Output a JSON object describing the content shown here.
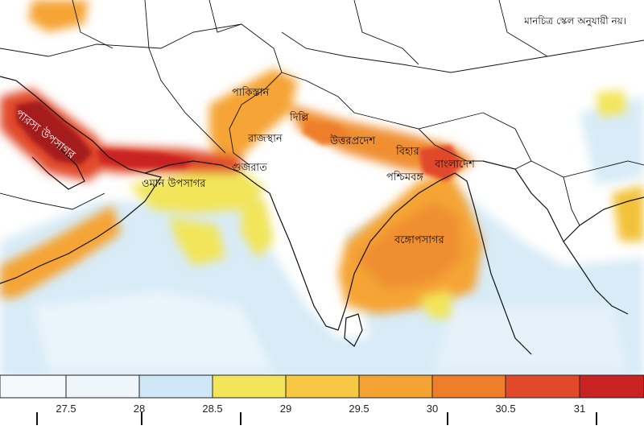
{
  "map": {
    "note": "মানচিত্র স্কেল অনুযায়ী নয়।",
    "labels": {
      "persian_gulf": "পারস্য উপসাগর",
      "pakistan": "পাকিস্তান",
      "delhi": "দিল্লি",
      "rajasthan": "রাজস্থান",
      "uttar_pradesh": "উত্তরপ্রদেশ",
      "gujarat": "গুজরাত",
      "gulf_of_oman": "ওমান উপসাগর",
      "bihar": "বিহার",
      "bangladesh": "বাংলাদেশ",
      "west_bengal": "পশ্চিমবঙ্গ",
      "bay_of_bengal": "বঙ্গোপসাগর"
    }
  },
  "colorbar": {
    "ticks": [
      "27.5",
      "28",
      "28.5",
      "29",
      "29.5",
      "30",
      "30.5",
      "31"
    ],
    "colors": [
      "#eef6fc",
      "#cfe6f6",
      "#f2e55a",
      "#f8c744",
      "#f5a434",
      "#ee7e2a",
      "#e1492a",
      "#c92222"
    ]
  }
}
